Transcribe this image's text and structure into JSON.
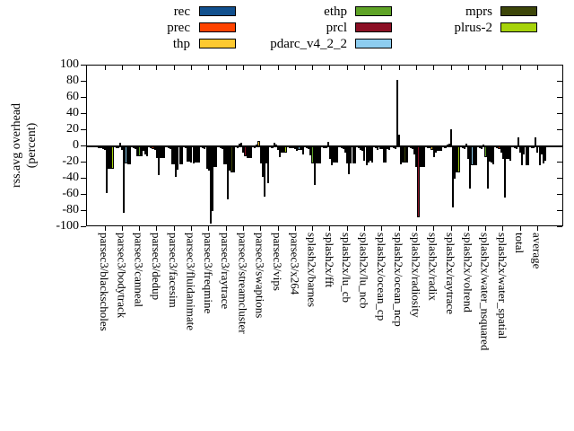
{
  "chart_data": {
    "type": "bar",
    "title": "",
    "ylabel": "rss.avg overhead (percent)",
    "ylabel_lines": [
      "rss.avg overhead",
      "(percent)"
    ],
    "xlabel": "",
    "ylim": [
      -100,
      100
    ],
    "yticks": [
      100,
      80,
      60,
      40,
      20,
      0,
      -20,
      -40,
      -60,
      -80,
      -100
    ],
    "grid": false,
    "legend_position": "top",
    "legend_columns": [
      [
        0,
        1,
        2
      ],
      [
        3,
        4,
        5
      ],
      [
        6,
        7
      ]
    ],
    "categories": [
      "parsec3/blackscholes",
      "parsec3/bodytrack",
      "parsec3/canneal",
      "parsec3/dedup",
      "parsec3/facesim",
      "parsec3/fluidanimate",
      "parsec3/freqmine",
      "parsec3/raytrace",
      "parsec3/streamcluster",
      "parsec3/swaptions",
      "parsec3/vips",
      "parsec3/x264",
      "splash2x/barnes",
      "splash2x/fft",
      "splash2x/lu_cb",
      "splash2x/lu_ncb",
      "splash2x/ocean_cp",
      "splash2x/ocean_ncp",
      "splash2x/radiosity",
      "splash2x/radix",
      "splash2x/raytrace",
      "splash2x/volrend",
      "splash2x/water_nsquared",
      "splash2x/water_spatial",
      "total",
      "average"
    ],
    "series": [
      {
        "name": "rec",
        "color": "#11508e",
        "values": [
          -1,
          -1,
          -1,
          -1,
          -2,
          -2,
          -2,
          -2,
          -1,
          -2,
          -1,
          -1,
          -2,
          -1,
          -2,
          -2,
          -2,
          -2,
          -2,
          -1,
          -2,
          -2,
          -2,
          -2,
          -2,
          -2
        ]
      },
      {
        "name": "prec",
        "color": "#ff4300",
        "values": [
          -2,
          -2,
          -3,
          -3,
          -3,
          -19,
          -3,
          -3,
          3,
          2,
          4,
          -2,
          -3,
          -2,
          -3,
          -4,
          -4,
          -3,
          -3,
          -2,
          2,
          -3,
          -3,
          -3,
          -3,
          -2
        ]
      },
      {
        "name": "thp",
        "color": "#fdc930",
        "values": [
          -3,
          4,
          -12,
          -4,
          -22,
          -19,
          -28,
          -22,
          4,
          7,
          2,
          -2,
          -11,
          6,
          -8,
          -5,
          -3,
          82,
          -10,
          -4,
          3,
          3,
          2,
          -8,
          11,
          11
        ]
      },
      {
        "name": "ethp",
        "color": "#5ea326",
        "values": [
          -4,
          -4,
          -12,
          -14,
          -22,
          -20,
          -30,
          -22,
          -8,
          -21,
          -4,
          -3,
          -21,
          -15,
          -21,
          -18,
          -3,
          15,
          -26,
          -13,
          21,
          -15,
          -13,
          -15,
          -8,
          -8
        ]
      },
      {
        "name": "prcl",
        "color": "#8b0f24",
        "values": [
          -58,
          -82,
          -12,
          -36,
          -38,
          -21,
          -95,
          -65,
          -12,
          -38,
          -13,
          -5,
          -48,
          -23,
          -34,
          -23,
          -20,
          -22,
          -88,
          -8,
          -75,
          -52,
          -52,
          -63,
          -23,
          -23
        ]
      },
      {
        "name": "pdarc_v4_2_2",
        "color": "#8dcdf0",
        "values": [
          -28,
          -21,
          -6,
          -14,
          -29,
          -20,
          -80,
          -30,
          -14,
          -62,
          -8,
          -4,
          -21,
          -20,
          -21,
          -20,
          -20,
          -20,
          -26,
          -6,
          -40,
          -23,
          -19,
          -15,
          -10,
          -10
        ]
      },
      {
        "name": "mprs",
        "color": "#3d4609",
        "values": [
          -28,
          -22,
          -10,
          -14,
          -22,
          -20,
          -26,
          -32,
          -14,
          -21,
          -8,
          -4,
          -21,
          -20,
          -21,
          -18,
          -3,
          -20,
          -26,
          -6,
          -32,
          -23,
          -20,
          -15,
          -23,
          -21
        ]
      },
      {
        "name": "plrus-2",
        "color": "#a6d30a",
        "values": [
          -28,
          -22,
          -12,
          -14,
          -22,
          -20,
          -26,
          -32,
          -14,
          -45,
          -8,
          -10,
          -21,
          -20,
          -21,
          -20,
          -4,
          -20,
          -26,
          -6,
          -32,
          -23,
          -22,
          -18,
          -23,
          -18
        ]
      }
    ]
  }
}
